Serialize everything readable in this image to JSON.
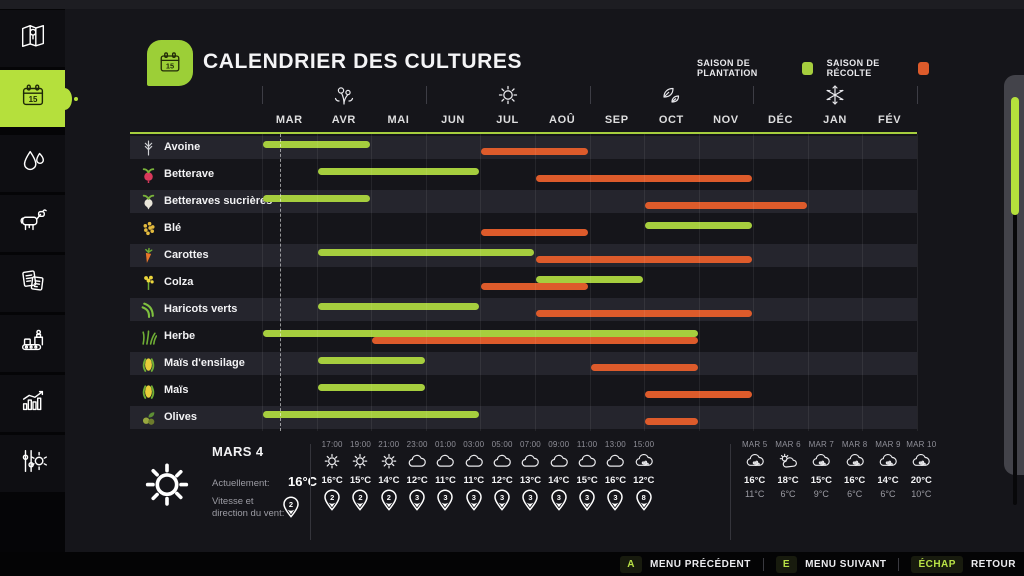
{
  "header": {
    "title": "CALENDRIER DES CULTURES",
    "app_icon": "calendar-icon"
  },
  "legend": {
    "plantation_label": "SAISON DE PLANTATION",
    "plantation_color": "#a6ce3e",
    "harvest_label": "SAISON DE RÉCOLTE",
    "harvest_color": "#dd5b2b"
  },
  "sidebar": {
    "items": [
      {
        "id": "map",
        "icon": "map-icon",
        "active": false
      },
      {
        "id": "calendar",
        "icon": "calendar-icon",
        "active": true
      },
      {
        "id": "water",
        "icon": "water-drops-icon",
        "active": false
      },
      {
        "id": "animals",
        "icon": "cow-icon",
        "active": false
      },
      {
        "id": "contracts",
        "icon": "documents-icon",
        "active": false
      },
      {
        "id": "production",
        "icon": "production-icon",
        "active": false
      },
      {
        "id": "statistics",
        "icon": "bar-chart-icon",
        "active": false
      },
      {
        "id": "settings",
        "icon": "settings-icon",
        "active": false
      }
    ]
  },
  "calendar": {
    "months": [
      "MAR",
      "AVR",
      "MAI",
      "JUN",
      "JUL",
      "AOÛ",
      "SEP",
      "OCT",
      "NOV",
      "DÉC",
      "JAN",
      "FÉV"
    ],
    "seasons": [
      {
        "name": "spring",
        "icon": "spring-flower-icon",
        "center_month": 1.5
      },
      {
        "name": "summer",
        "icon": "summer-sun-icon",
        "center_month": 4.5
      },
      {
        "name": "autumn",
        "icon": "autumn-leaves-icon",
        "center_month": 7.5
      },
      {
        "name": "winter",
        "icon": "winter-snowflake-icon",
        "center_month": 10.5
      }
    ],
    "today_marker": {
      "month_index": 0,
      "fraction": 0.33
    },
    "crops": [
      {
        "name": "Avoine",
        "icon": "oat-icon",
        "plant_start": 0,
        "plant_end": 1,
        "harvest_start": 4,
        "harvest_end": 5
      },
      {
        "name": "Betterave",
        "icon": "beet-icon",
        "plant_start": 1,
        "plant_end": 3,
        "harvest_start": 5,
        "harvest_end": 8
      },
      {
        "name": "Betteraves sucrières",
        "icon": "sugar-beet-icon",
        "plant_start": 0,
        "plant_end": 1,
        "harvest_start": 7,
        "harvest_end": 9
      },
      {
        "name": "Blé",
        "icon": "wheat-icon",
        "plant_start": 7,
        "plant_end": 8,
        "harvest_start": 4,
        "harvest_end": 5
      },
      {
        "name": "Carottes",
        "icon": "carrot-icon",
        "plant_start": 1,
        "plant_end": 4,
        "harvest_start": 5,
        "harvest_end": 8
      },
      {
        "name": "Colza",
        "icon": "canola-icon",
        "plant_start": 5,
        "plant_end": 6,
        "harvest_start": 4,
        "harvest_end": 5
      },
      {
        "name": "Haricots verts",
        "icon": "green-bean-icon",
        "plant_start": 1,
        "plant_end": 3,
        "harvest_start": 5,
        "harvest_end": 8
      },
      {
        "name": "Herbe",
        "icon": "grass-icon",
        "plant_start": 0,
        "plant_end": 7,
        "harvest_start": 2,
        "harvest_end": 7
      },
      {
        "name": "Maïs d'ensilage",
        "icon": "silage-corn-icon",
        "plant_start": 1,
        "plant_end": 2,
        "harvest_start": 6,
        "harvest_end": 7
      },
      {
        "name": "Maïs",
        "icon": "corn-icon",
        "plant_start": 1,
        "plant_end": 2,
        "harvest_start": 7,
        "harvest_end": 8
      },
      {
        "name": "Olives",
        "icon": "olive-icon",
        "plant_start": 0,
        "plant_end": 3,
        "harvest_start": 7,
        "harvest_end": 7
      }
    ]
  },
  "weather": {
    "current": {
      "date": "MARS 4",
      "icon": "sun-icon",
      "actual_label": "Actuellement:",
      "temp": "16°C",
      "wind_label_line1": "Vitesse et",
      "wind_label_line2": "direction du vent:",
      "wind": "2"
    },
    "hourly": [
      {
        "time": "17:00",
        "icon": "sun-icon",
        "temp": "16°C",
        "wind": "2"
      },
      {
        "time": "19:00",
        "icon": "sun-icon",
        "temp": "15°C",
        "wind": "2"
      },
      {
        "time": "21:00",
        "icon": "sun-icon",
        "temp": "14°C",
        "wind": "2"
      },
      {
        "time": "23:00",
        "icon": "cloud-icon",
        "temp": "12°C",
        "wind": "3"
      },
      {
        "time": "01:00",
        "icon": "cloud-icon",
        "temp": "11°C",
        "wind": "3"
      },
      {
        "time": "03:00",
        "icon": "cloud-icon",
        "temp": "11°C",
        "wind": "3"
      },
      {
        "time": "05:00",
        "icon": "cloud-icon",
        "temp": "12°C",
        "wind": "3"
      },
      {
        "time": "07:00",
        "icon": "cloud-icon",
        "temp": "13°C",
        "wind": "3"
      },
      {
        "time": "09:00",
        "icon": "cloud-icon",
        "temp": "14°C",
        "wind": "3"
      },
      {
        "time": "11:00",
        "icon": "cloud-icon",
        "temp": "15°C",
        "wind": "3"
      },
      {
        "time": "13:00",
        "icon": "cloud-icon",
        "temp": "16°C",
        "wind": "3"
      },
      {
        "time": "15:00",
        "icon": "rain-cloud-icon",
        "temp": "12°C",
        "wind": "8"
      }
    ],
    "daily": [
      {
        "day": "MAR 5",
        "icon": "rain-cloud-icon",
        "high": "16°C",
        "low": "11°C"
      },
      {
        "day": "MAR 6",
        "icon": "partly-sunny-icon",
        "high": "18°C",
        "low": "6°C"
      },
      {
        "day": "MAR 7",
        "icon": "rain-cloud-icon",
        "high": "15°C",
        "low": "9°C"
      },
      {
        "day": "MAR 8",
        "icon": "rain-cloud-icon",
        "high": "16°C",
        "low": "6°C"
      },
      {
        "day": "MAR 9",
        "icon": "rain-cloud-icon",
        "high": "14°C",
        "low": "6°C"
      },
      {
        "day": "MAR 10",
        "icon": "rain-cloud-icon",
        "high": "20°C",
        "low": "10°C"
      }
    ]
  },
  "footer": {
    "buttons": [
      {
        "key": "A",
        "label": "MENU PRÉCÉDENT"
      },
      {
        "key": "E",
        "label": "MENU SUIVANT"
      },
      {
        "key": "ÉCHAP",
        "label": "RETOUR"
      }
    ]
  }
}
